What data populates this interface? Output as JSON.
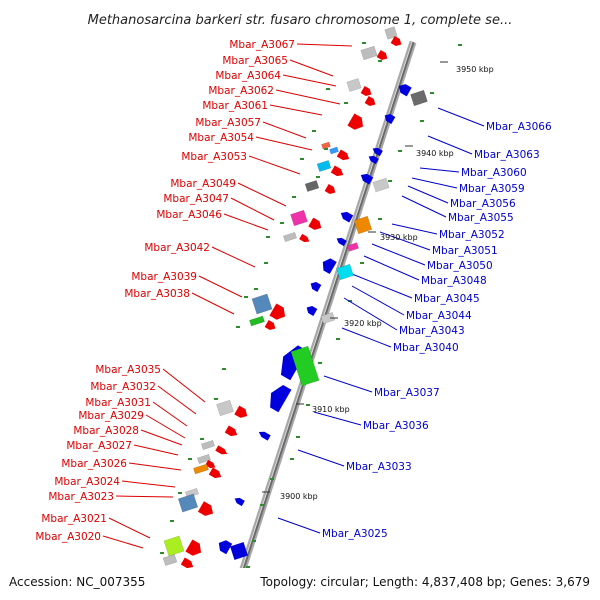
{
  "title": "Methanosarcina barkeri str. fusaro chromosome 1, complete se...",
  "footer": {
    "accession": "Accession: NC_007355",
    "topology": "Topology: circular; Length: 4,837,408 bp; Genes: 3,679"
  },
  "ticks": [
    "3950 kbp",
    "3940 kbp",
    "3930 kbp",
    "3920 kbp",
    "3910 kbp",
    "3900 kbp"
  ],
  "left_labels": [
    "Mbar_A3067",
    "Mbar_A3065",
    "Mbar_A3064",
    "Mbar_A3062",
    "Mbar_A3061",
    "Mbar_A3057",
    "Mbar_A3054",
    "Mbar_A3053",
    "Mbar_A3049",
    "Mbar_A3047",
    "Mbar_A3046",
    "Mbar_A3042",
    "Mbar_A3039",
    "Mbar_A3038",
    "Mbar_A3035",
    "Mbar_A3032",
    "Mbar_A3031",
    "Mbar_A3029",
    "Mbar_A3028",
    "Mbar_A3027",
    "Mbar_A3026",
    "Mbar_A3024",
    "Mbar_A3023",
    "Mbar_A3021",
    "Mbar_A3020"
  ],
  "right_labels": [
    "Mbar_A3066",
    "Mbar_A3063",
    "Mbar_A3060",
    "Mbar_A3059",
    "Mbar_A3056",
    "Mbar_A3055",
    "Mbar_A3052",
    "Mbar_A3051",
    "Mbar_A3050",
    "Mbar_A3048",
    "Mbar_A3045",
    "Mbar_A3044",
    "Mbar_A3043",
    "Mbar_A3040",
    "Mbar_A3037",
    "Mbar_A3036",
    "Mbar_A3033",
    "Mbar_A3025"
  ],
  "colors": {
    "forward_label": "#dd0000",
    "reverse_label": "#0000cc",
    "forward_gene": "#ee0000",
    "reverse_gene": "#0000dd",
    "backbone": "#808080"
  }
}
